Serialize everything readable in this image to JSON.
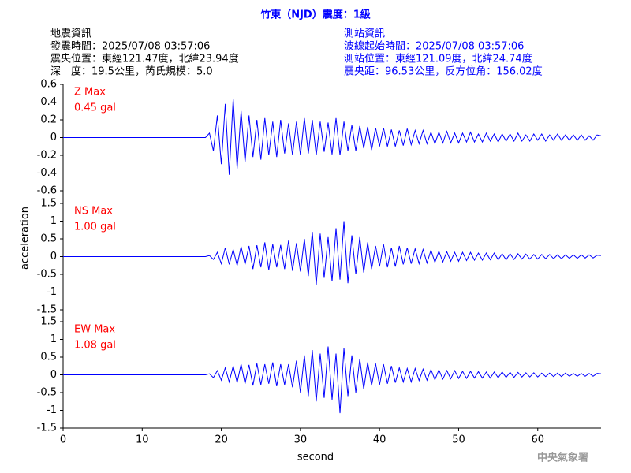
{
  "title": "竹東（NJD）震度：1級",
  "earthquake_info": {
    "heading": "地震資訊",
    "lines": [
      "發震時間：2025/07/08 03:57:06",
      "震央位置：東經121.47度，北緯23.94度",
      "深　度：19.5公里，芮氏規模：5.0"
    ]
  },
  "station_info": {
    "heading": "測站資訊",
    "lines": [
      "波線起始時間：2025/07/08 03:57:06",
      "測站位置：東經121.09度，北緯24.74度",
      "震央距：96.53公里，反方位角：156.02度"
    ]
  },
  "footer": "中央氣象署",
  "chart_data": [
    {
      "type": "line",
      "annotations": [
        "Z Max",
        "0.45 gal"
      ],
      "color": "#0000ff",
      "xlim": [
        0,
        68
      ],
      "ylim": [
        -0.6,
        0.6
      ],
      "yticks": [
        -0.6,
        -0.4,
        -0.2,
        0,
        0.2,
        0.4,
        0.6
      ],
      "x": [
        0,
        0.5,
        1,
        1.5,
        2,
        2.5,
        3,
        3.5,
        4,
        4.5,
        5,
        5.5,
        6,
        6.5,
        7,
        7.5,
        8,
        8.5,
        9,
        9.5,
        10,
        10.5,
        11,
        11.5,
        12,
        12.5,
        13,
        13.5,
        14,
        14.5,
        15,
        15.5,
        16,
        16.5,
        17,
        17.5,
        18,
        18.5,
        19,
        19.5,
        20,
        20.5,
        21,
        21.5,
        22,
        22.5,
        23,
        23.5,
        24,
        24.5,
        25,
        25.5,
        26,
        26.5,
        27,
        27.5,
        28,
        28.5,
        29,
        29.5,
        30,
        30.5,
        31,
        31.5,
        32,
        32.5,
        33,
        33.5,
        34,
        34.5,
        35,
        35.5,
        36,
        36.5,
        37,
        37.5,
        38,
        38.5,
        39,
        39.5,
        40,
        40.5,
        41,
        41.5,
        42,
        42.5,
        43,
        43.5,
        44,
        44.5,
        45,
        45.5,
        46,
        46.5,
        47,
        47.5,
        48,
        48.5,
        49,
        49.5,
        50,
        50.5,
        51,
        51.5,
        52,
        52.5,
        53,
        53.5,
        54,
        54.5,
        55,
        55.5,
        56,
        56.5,
        57,
        57.5,
        58,
        58.5,
        59,
        59.5,
        60,
        60.5,
        61,
        61.5,
        62,
        62.5,
        63,
        63.5,
        64,
        64.5,
        65,
        65.5,
        66,
        66.5,
        67,
        67.5,
        68
      ],
      "values": [
        0,
        0,
        0,
        0,
        0,
        0,
        0,
        0,
        0,
        0,
        0,
        0,
        0,
        0,
        0,
        0,
        0,
        0,
        0,
        0,
        0,
        0,
        0,
        0,
        0,
        0,
        0,
        0,
        0,
        0,
        0,
        0,
        0,
        0,
        0,
        0,
        0,
        0.05,
        -0.15,
        0.25,
        -0.3,
        0.38,
        -0.42,
        0.44,
        -0.35,
        0.3,
        -0.28,
        0.25,
        -0.22,
        0.2,
        -0.25,
        0.22,
        -0.2,
        0.18,
        -0.22,
        0.2,
        -0.18,
        0.16,
        -0.2,
        0.18,
        -0.2,
        0.22,
        -0.18,
        0.2,
        -0.2,
        0.18,
        -0.16,
        0.17,
        -0.19,
        0.22,
        -0.2,
        0.18,
        -0.15,
        0.14,
        -0.15,
        0.13,
        -0.12,
        0.12,
        -0.14,
        0.11,
        -0.1,
        0.11,
        -0.1,
        0.09,
        -0.1,
        0.08,
        -0.09,
        0.1,
        -0.08,
        0.08,
        -0.07,
        0.08,
        -0.07,
        0.06,
        -0.07,
        0.06,
        -0.06,
        0.07,
        -0.06,
        0.05,
        -0.06,
        0.05,
        -0.05,
        0.06,
        -0.05,
        0.04,
        -0.05,
        0.05,
        -0.04,
        0.04,
        -0.05,
        0.04,
        -0.04,
        0.04,
        -0.04,
        0.05,
        -0.04,
        0.03,
        -0.04,
        0.04,
        -0.03,
        0.04,
        -0.04,
        0.03,
        -0.03,
        0.04,
        -0.03,
        0.03,
        -0.03,
        0.03,
        -0.03,
        0.03,
        -0.03,
        0.02,
        -0.03,
        0.03,
        0.02
      ]
    },
    {
      "type": "line",
      "annotations": [
        "NS Max",
        "1.00 gal"
      ],
      "color": "#0000ff",
      "ylabel": "acceleration",
      "xlim": [
        0,
        68
      ],
      "ylim": [
        -1.5,
        1.5
      ],
      "yticks": [
        -1.5,
        -1,
        -0.5,
        0,
        0.5,
        1,
        1.5
      ],
      "x": [
        0,
        0.5,
        1,
        1.5,
        2,
        2.5,
        3,
        3.5,
        4,
        4.5,
        5,
        5.5,
        6,
        6.5,
        7,
        7.5,
        8,
        8.5,
        9,
        9.5,
        10,
        10.5,
        11,
        11.5,
        12,
        12.5,
        13,
        13.5,
        14,
        14.5,
        15,
        15.5,
        16,
        16.5,
        17,
        17.5,
        18,
        18.5,
        19,
        19.5,
        20,
        20.5,
        21,
        21.5,
        22,
        22.5,
        23,
        23.5,
        24,
        24.5,
        25,
        25.5,
        26,
        26.5,
        27,
        27.5,
        28,
        28.5,
        29,
        29.5,
        30,
        30.5,
        31,
        31.5,
        32,
        32.5,
        33,
        33.5,
        34,
        34.5,
        35,
        35.5,
        36,
        36.5,
        37,
        37.5,
        38,
        38.5,
        39,
        39.5,
        40,
        40.5,
        41,
        41.5,
        42,
        42.5,
        43,
        43.5,
        44,
        44.5,
        45,
        45.5,
        46,
        46.5,
        47,
        47.5,
        48,
        48.5,
        49,
        49.5,
        50,
        50.5,
        51,
        51.5,
        52,
        52.5,
        53,
        53.5,
        54,
        54.5,
        55,
        55.5,
        56,
        56.5,
        57,
        57.5,
        58,
        58.5,
        59,
        59.5,
        60,
        60.5,
        61,
        61.5,
        62,
        62.5,
        63,
        63.5,
        64,
        64.5,
        65,
        65.5,
        66,
        66.5,
        67,
        67.5,
        68
      ],
      "values": [
        0,
        0,
        0,
        0,
        0,
        0,
        0,
        0,
        0,
        0,
        0,
        0,
        0,
        0,
        0,
        0,
        0,
        0,
        0,
        0,
        0,
        0,
        0,
        0,
        0,
        0,
        0,
        0,
        0,
        0,
        0,
        0,
        0,
        0,
        0,
        0,
        0,
        0.03,
        -0.08,
        0.12,
        -0.2,
        0.25,
        -0.22,
        0.2,
        -0.25,
        0.28,
        -0.22,
        0.3,
        -0.35,
        0.32,
        -0.3,
        0.4,
        -0.38,
        0.35,
        -0.3,
        0.33,
        -0.35,
        0.45,
        -0.4,
        0.38,
        -0.42,
        0.5,
        -0.55,
        0.7,
        -0.8,
        0.65,
        -0.6,
        0.55,
        -0.7,
        0.8,
        -0.65,
        1.0,
        -0.75,
        0.6,
        -0.5,
        0.55,
        -0.45,
        0.4,
        -0.35,
        0.3,
        -0.28,
        0.35,
        -0.3,
        0.25,
        -0.28,
        0.3,
        -0.22,
        0.25,
        -0.2,
        0.22,
        -0.2,
        0.2,
        -0.18,
        0.18,
        -0.16,
        0.15,
        -0.15,
        0.14,
        -0.13,
        0.12,
        -0.13,
        0.12,
        -0.11,
        0.12,
        -0.1,
        0.1,
        -0.1,
        0.1,
        -0.09,
        0.1,
        -0.09,
        0.08,
        -0.09,
        0.08,
        -0.08,
        0.08,
        -0.07,
        0.07,
        -0.07,
        0.06,
        -0.07,
        0.06,
        -0.06,
        0.06,
        -0.06,
        0.05,
        -0.06,
        0.05,
        -0.05,
        0.05,
        -0.05,
        0.05,
        -0.04,
        0.05,
        -0.04,
        0.04,
        0.03
      ]
    },
    {
      "type": "line",
      "annotations": [
        "EW Max",
        "1.08 gal"
      ],
      "color": "#0000ff",
      "xlabel": "second",
      "xlim": [
        0,
        68
      ],
      "xticks": [
        0,
        10,
        20,
        30,
        40,
        50,
        60
      ],
      "ylim": [
        -1.5,
        1.5
      ],
      "yticks": [
        -1.5,
        -1,
        -0.5,
        0,
        0.5,
        1,
        1.5
      ],
      "x": [
        0,
        0.5,
        1,
        1.5,
        2,
        2.5,
        3,
        3.5,
        4,
        4.5,
        5,
        5.5,
        6,
        6.5,
        7,
        7.5,
        8,
        8.5,
        9,
        9.5,
        10,
        10.5,
        11,
        11.5,
        12,
        12.5,
        13,
        13.5,
        14,
        14.5,
        15,
        15.5,
        16,
        16.5,
        17,
        17.5,
        18,
        18.5,
        19,
        19.5,
        20,
        20.5,
        21,
        21.5,
        22,
        22.5,
        23,
        23.5,
        24,
        24.5,
        25,
        25.5,
        26,
        26.5,
        27,
        27.5,
        28,
        28.5,
        29,
        29.5,
        30,
        30.5,
        31,
        31.5,
        32,
        32.5,
        33,
        33.5,
        34,
        34.5,
        35,
        35.5,
        36,
        36.5,
        37,
        37.5,
        38,
        38.5,
        39,
        39.5,
        40,
        40.5,
        41,
        41.5,
        42,
        42.5,
        43,
        43.5,
        44,
        44.5,
        45,
        45.5,
        46,
        46.5,
        47,
        47.5,
        48,
        48.5,
        49,
        49.5,
        50,
        50.5,
        51,
        51.5,
        52,
        52.5,
        53,
        53.5,
        54,
        54.5,
        55,
        55.5,
        56,
        56.5,
        57,
        57.5,
        58,
        58.5,
        59,
        59.5,
        60,
        60.5,
        61,
        61.5,
        62,
        62.5,
        63,
        63.5,
        64,
        64.5,
        65,
        65.5,
        66,
        66.5,
        67,
        67.5,
        68
      ],
      "values": [
        0,
        0,
        0,
        0,
        0,
        0,
        0,
        0,
        0,
        0,
        0,
        0,
        0,
        0,
        0,
        0,
        0,
        0,
        0,
        0,
        0,
        0,
        0,
        0,
        0,
        0,
        0,
        0,
        0,
        0,
        0,
        0,
        0,
        0,
        0,
        0,
        0,
        0.03,
        -0.08,
        0.12,
        -0.15,
        0.2,
        -0.2,
        0.25,
        -0.22,
        0.3,
        -0.25,
        0.28,
        -0.3,
        0.32,
        -0.28,
        0.3,
        -0.25,
        0.35,
        -0.32,
        0.3,
        -0.28,
        0.3,
        -0.35,
        0.4,
        -0.5,
        0.55,
        -0.6,
        0.7,
        -0.75,
        0.6,
        -0.65,
        0.8,
        -0.7,
        0.6,
        -1.08,
        0.75,
        -0.6,
        0.55,
        -0.5,
        0.45,
        -0.4,
        0.35,
        -0.3,
        0.32,
        -0.28,
        0.3,
        -0.25,
        0.25,
        -0.22,
        0.2,
        -0.2,
        0.18,
        -0.2,
        0.18,
        -0.16,
        0.16,
        -0.15,
        0.15,
        -0.14,
        0.14,
        -0.12,
        0.12,
        -0.11,
        0.12,
        -0.1,
        0.1,
        -0.1,
        0.1,
        -0.09,
        0.09,
        -0.09,
        0.08,
        -0.09,
        0.08,
        -0.08,
        0.08,
        -0.07,
        0.07,
        -0.07,
        0.07,
        -0.06,
        0.06,
        -0.06,
        0.06,
        -0.06,
        0.05,
        -0.05,
        0.05,
        -0.05,
        0.05,
        -0.05,
        0.05,
        -0.04,
        0.04,
        -0.04,
        0.04,
        -0.04,
        0.04,
        -0.04,
        0.04,
        0.03
      ]
    }
  ]
}
